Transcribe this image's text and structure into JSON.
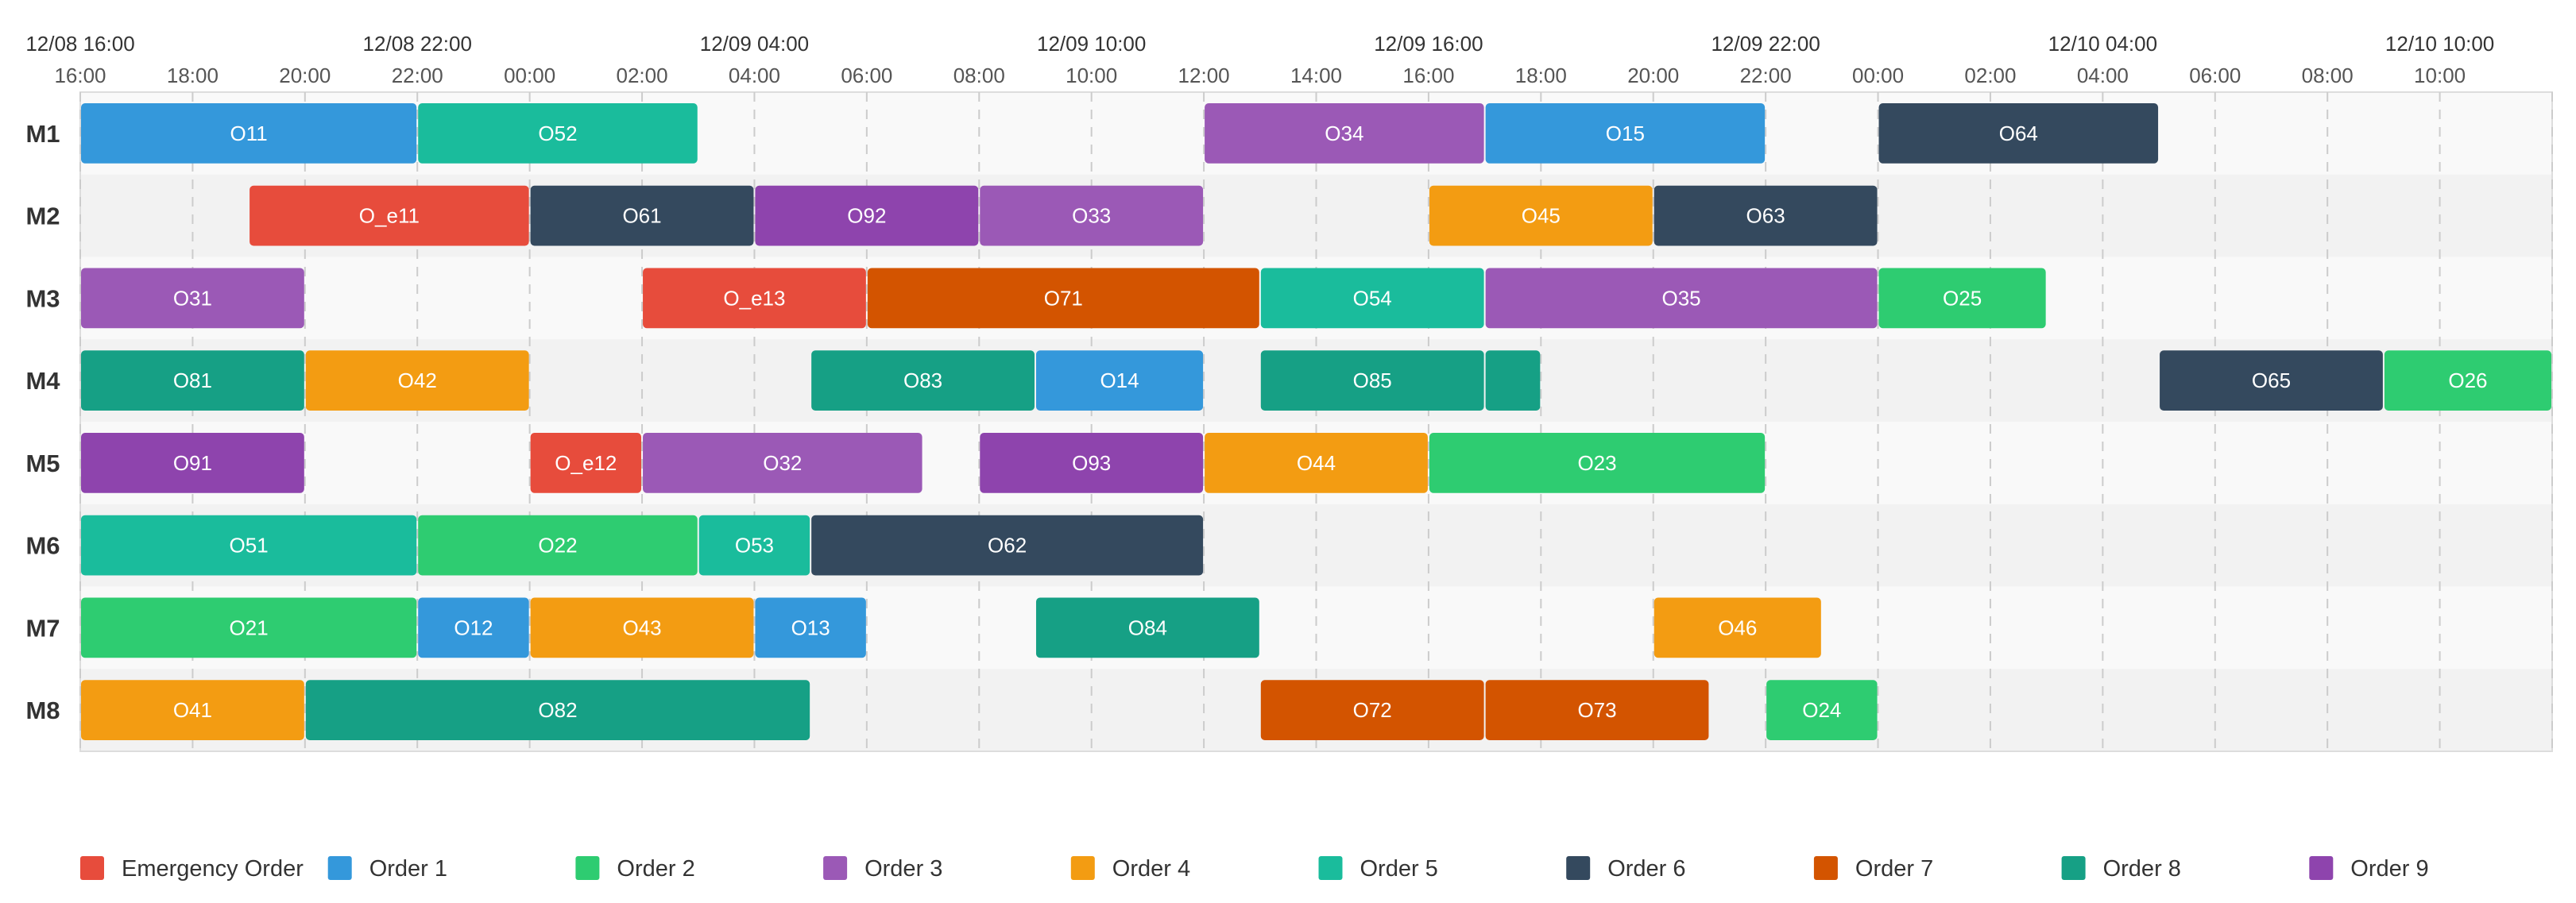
{
  "chart_data": {
    "type": "gantt",
    "x_unit": "hours from 12/08 16:00",
    "xlim": [
      0,
      44
    ],
    "date_ticks": [
      "12/08 16:00",
      "12/08 22:00",
      "12/09 04:00",
      "12/09 10:00",
      "12/09 16:00",
      "12/09 22:00",
      "12/10 04:00",
      "12/10 10:00"
    ],
    "hour_ticks": [
      "16:00",
      "18:00",
      "20:00",
      "22:00",
      "00:00",
      "02:00",
      "04:00",
      "06:00",
      "08:00",
      "10:00",
      "12:00",
      "14:00",
      "16:00",
      "18:00",
      "20:00",
      "22:00",
      "00:00",
      "02:00",
      "04:00",
      "06:00",
      "08:00",
      "10:00"
    ],
    "machines": [
      "M1",
      "M2",
      "M3",
      "M4",
      "M5",
      "M6",
      "M7",
      "M8"
    ],
    "legend": [
      {
        "label": "Emergency Order",
        "color": "#e74c3c"
      },
      {
        "label": "Order 1",
        "color": "#3498db"
      },
      {
        "label": "Order 2",
        "color": "#2ecc71"
      },
      {
        "label": "Order 3",
        "color": "#9b59b6"
      },
      {
        "label": "Order 4",
        "color": "#f39c12"
      },
      {
        "label": "Order 5",
        "color": "#1abc9c"
      },
      {
        "label": "Order 6",
        "color": "#34495e"
      },
      {
        "label": "Order 7",
        "color": "#d35400"
      },
      {
        "label": "Order 8",
        "color": "#16a085"
      },
      {
        "label": "Order 9",
        "color": "#8e44ad"
      }
    ],
    "tasks": [
      {
        "machine": "M1",
        "label": "O11",
        "start": 0,
        "end": 6,
        "order": "Order 1"
      },
      {
        "machine": "M1",
        "label": "O52",
        "start": 6,
        "end": 11,
        "order": "Order 5"
      },
      {
        "machine": "M1",
        "label": "O34",
        "start": 20,
        "end": 25,
        "order": "Order 3"
      },
      {
        "machine": "M1",
        "label": "O15",
        "start": 25,
        "end": 30,
        "order": "Order 1"
      },
      {
        "machine": "M1",
        "label": "O64",
        "start": 32,
        "end": 37,
        "order": "Order 6"
      },
      {
        "machine": "M2",
        "label": "O_e11",
        "start": 3,
        "end": 8,
        "order": "Emergency Order"
      },
      {
        "machine": "M2",
        "label": "O61",
        "start": 8,
        "end": 12,
        "order": "Order 6"
      },
      {
        "machine": "M2",
        "label": "O92",
        "start": 12,
        "end": 16,
        "order": "Order 9"
      },
      {
        "machine": "M2",
        "label": "O33",
        "start": 16,
        "end": 20,
        "order": "Order 3"
      },
      {
        "machine": "M2",
        "label": "O45",
        "start": 24,
        "end": 28,
        "order": "Order 4"
      },
      {
        "machine": "M2",
        "label": "O63",
        "start": 28,
        "end": 32,
        "order": "Order 6"
      },
      {
        "machine": "M3",
        "label": "O31",
        "start": 0,
        "end": 4,
        "order": "Order 3"
      },
      {
        "machine": "M3",
        "label": "O_e13",
        "start": 10,
        "end": 14,
        "order": "Emergency Order"
      },
      {
        "machine": "M3",
        "label": "O71",
        "start": 14,
        "end": 21,
        "order": "Order 7"
      },
      {
        "machine": "M3",
        "label": "O54",
        "start": 21,
        "end": 25,
        "order": "Order 5"
      },
      {
        "machine": "M3",
        "label": "O35",
        "start": 25,
        "end": 32,
        "order": "Order 3"
      },
      {
        "machine": "M3",
        "label": "O25",
        "start": 32,
        "end": 35,
        "order": "Order 2"
      },
      {
        "machine": "M4",
        "label": "O81",
        "start": 0,
        "end": 4,
        "order": "Order 8"
      },
      {
        "machine": "M4",
        "label": "O42",
        "start": 4,
        "end": 8,
        "order": "Order 4"
      },
      {
        "machine": "M4",
        "label": "O83",
        "start": 13,
        "end": 17,
        "order": "Order 8"
      },
      {
        "machine": "M4",
        "label": "O14",
        "start": 17,
        "end": 20,
        "order": "Order 1"
      },
      {
        "machine": "M4",
        "label": "O85",
        "start": 21,
        "end": 25,
        "order": "Order 8"
      },
      {
        "machine": "M4",
        "label": "",
        "start": 25,
        "end": 26,
        "order": "Order 8"
      },
      {
        "machine": "M4",
        "label": "O65",
        "start": 37,
        "end": 41,
        "order": "Order 6"
      },
      {
        "machine": "M4",
        "label": "O26",
        "start": 41,
        "end": 44,
        "order": "Order 2"
      },
      {
        "machine": "M5",
        "label": "O91",
        "start": 0,
        "end": 4,
        "order": "Order 9"
      },
      {
        "machine": "M5",
        "label": "O_e12",
        "start": 8,
        "end": 10,
        "order": "Emergency Order"
      },
      {
        "machine": "M5",
        "label": "O32",
        "start": 10,
        "end": 15,
        "order": "Order 3"
      },
      {
        "machine": "M5",
        "label": "O93",
        "start": 16,
        "end": 20,
        "order": "Order 9"
      },
      {
        "machine": "M5",
        "label": "O44",
        "start": 20,
        "end": 24,
        "order": "Order 4"
      },
      {
        "machine": "M5",
        "label": "O23",
        "start": 24,
        "end": 30,
        "order": "Order 2"
      },
      {
        "machine": "M6",
        "label": "O51",
        "start": 0,
        "end": 6,
        "order": "Order 5"
      },
      {
        "machine": "M6",
        "label": "O22",
        "start": 6,
        "end": 11,
        "order": "Order 2"
      },
      {
        "machine": "M6",
        "label": "O53",
        "start": 11,
        "end": 13,
        "order": "Order 5"
      },
      {
        "machine": "M6",
        "label": "O62",
        "start": 13,
        "end": 20,
        "order": "Order 6"
      },
      {
        "machine": "M7",
        "label": "O21",
        "start": 0,
        "end": 6,
        "order": "Order 2"
      },
      {
        "machine": "M7",
        "label": "O12",
        "start": 6,
        "end": 8,
        "order": "Order 1"
      },
      {
        "machine": "M7",
        "label": "O43",
        "start": 8,
        "end": 12,
        "order": "Order 4"
      },
      {
        "machine": "M7",
        "label": "O13",
        "start": 12,
        "end": 14,
        "order": "Order 1"
      },
      {
        "machine": "M7",
        "label": "O84",
        "start": 17,
        "end": 21,
        "order": "Order 8"
      },
      {
        "machine": "M7",
        "label": "O46",
        "start": 28,
        "end": 31,
        "order": "Order 4"
      },
      {
        "machine": "M8",
        "label": "O41",
        "start": 0,
        "end": 4,
        "order": "Order 4"
      },
      {
        "machine": "M8",
        "label": "O82",
        "start": 4,
        "end": 13,
        "order": "Order 8"
      },
      {
        "machine": "M8",
        "label": "O72",
        "start": 21,
        "end": 25,
        "order": "Order 7"
      },
      {
        "machine": "M8",
        "label": "O73",
        "start": 25,
        "end": 29,
        "order": "Order 7"
      },
      {
        "machine": "M8",
        "label": "O24",
        "start": 30,
        "end": 32,
        "order": "Order 2"
      }
    ]
  }
}
